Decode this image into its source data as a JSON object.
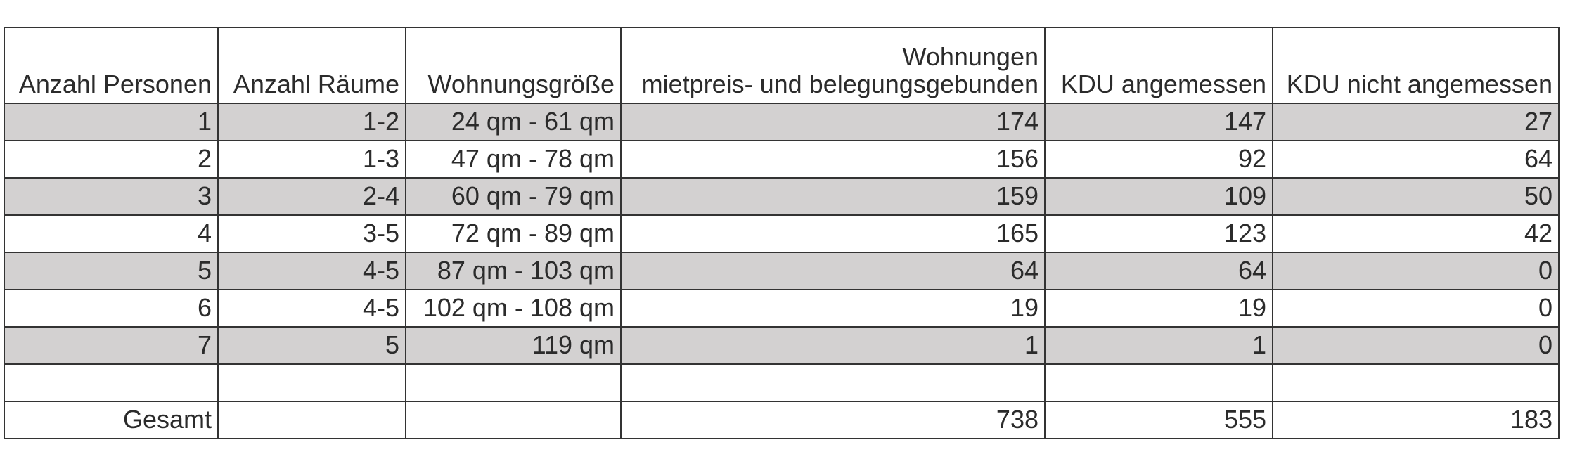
{
  "headers": [
    "Anzahl Personen",
    "Anzahl Räume",
    "Wohnungsgröße",
    "Wohnungen\nmietpreis- und belegungsgebunden",
    "KDU angemessen",
    "KDU nicht angemessen"
  ],
  "header_wohnungen_line1": "Wohnungen",
  "header_wohnungen_line2": "mietpreis- und belegungsgebunden",
  "rows": [
    [
      "1",
      "1-2",
      "24 qm - 61 qm",
      "174",
      "147",
      "27"
    ],
    [
      "2",
      "1-3",
      "47 qm - 78 qm",
      "156",
      "92",
      "64"
    ],
    [
      "3",
      "2-4",
      "60 qm - 79 qm",
      "159",
      "109",
      "50"
    ],
    [
      "4",
      "3-5",
      "72 qm - 89 qm",
      "165",
      "123",
      "42"
    ],
    [
      "5",
      "4-5",
      "87 qm - 103 qm",
      "64",
      "64",
      "0"
    ],
    [
      "6",
      "4-5",
      "102 qm - 108 qm",
      "19",
      "19",
      "0"
    ],
    [
      "7",
      "5",
      "119 qm",
      "1",
      "1",
      "0"
    ],
    [
      "",
      "",
      "",
      "",
      "",
      ""
    ]
  ],
  "total": [
    "Gesamt",
    "",
    "",
    "738",
    "555",
    "183"
  ],
  "colors": {
    "shaded_row": "#d3d1d1",
    "border": "#333333",
    "text": "#2b2b2b"
  }
}
